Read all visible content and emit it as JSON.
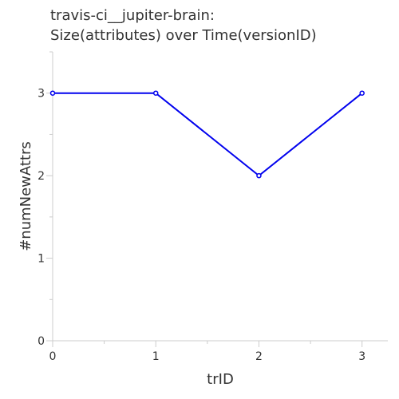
{
  "chart_data": {
    "type": "line",
    "title_lines": [
      "travis-ci__jupiter-brain:",
      "Size(attributes) over Time(versionID)"
    ],
    "xlabel": "trID",
    "ylabel": "#numNewAttrs",
    "x": [
      0,
      1,
      2,
      3
    ],
    "series": [
      {
        "values": [
          3,
          3,
          2,
          3
        ],
        "color": "#0000ee"
      }
    ],
    "xlim": [
      0,
      3.25
    ],
    "ylim": [
      0,
      3.5
    ],
    "xticks": [
      0,
      1,
      2,
      3
    ],
    "yticks": [
      0,
      1,
      2,
      3
    ],
    "grid": false,
    "legend": "none"
  }
}
